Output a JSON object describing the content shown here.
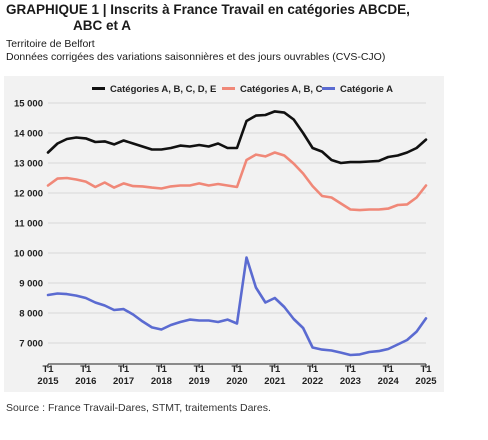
{
  "header": {
    "title_line1": "GRAPHIQUE 1 | Inscrits à France Travail en catégories ABCDE,",
    "title_line2": "ABC et A",
    "subtitle_line1": "Territoire de Belfort",
    "subtitle_line2": "Données corrigées des variations saisonnières et des jours ouvrables (CVS-CJO)"
  },
  "footer": {
    "source": "Source : France Travail-Dares, STMT, traitements Dares."
  },
  "chart_data": {
    "type": "line",
    "title": "",
    "xlabel": "",
    "ylabel": "",
    "ylim": [
      6500,
      15000
    ],
    "yticks": [
      7000,
      8000,
      9000,
      10000,
      11000,
      12000,
      13000,
      14000,
      15000
    ],
    "ytick_labels": [
      "7 000",
      "8 000",
      "9 000",
      "10 000",
      "11 000",
      "12 000",
      "13 000",
      "14 000",
      "15 000"
    ],
    "xlim": [
      2015.0,
      2025.0
    ],
    "xticks": [
      {
        "top": "T1",
        "bottom": "2015",
        "x": 2015
      },
      {
        "top": "T1",
        "bottom": "2016",
        "x": 2016
      },
      {
        "top": "T1",
        "bottom": "2017",
        "x": 2017
      },
      {
        "top": "T1",
        "bottom": "2018",
        "x": 2018
      },
      {
        "top": "T1",
        "bottom": "2019",
        "x": 2019
      },
      {
        "top": "T1",
        "bottom": "2020",
        "x": 2020
      },
      {
        "top": "T1",
        "bottom": "2021",
        "x": 2021
      },
      {
        "top": "T1",
        "bottom": "2022",
        "x": 2022
      },
      {
        "top": "T1",
        "bottom": "2023",
        "x": 2023
      },
      {
        "top": "T1",
        "bottom": "2024",
        "x": 2024
      },
      {
        "top": "T1",
        "bottom": "2025",
        "x": 2025
      }
    ],
    "grid": "horizontal",
    "legend_position": "top",
    "x": [
      2015.0,
      2015.25,
      2015.5,
      2015.75,
      2016.0,
      2016.25,
      2016.5,
      2016.75,
      2017.0,
      2017.25,
      2017.5,
      2017.75,
      2018.0,
      2018.25,
      2018.5,
      2018.75,
      2019.0,
      2019.25,
      2019.5,
      2019.75,
      2020.0,
      2020.25,
      2020.5,
      2020.75,
      2021.0,
      2021.25,
      2021.5,
      2021.75,
      2022.0,
      2022.25,
      2022.5,
      2022.75,
      2023.0,
      2023.25,
      2023.5,
      2023.75,
      2024.0,
      2024.25,
      2024.5,
      2024.75,
      2025.0
    ],
    "series": [
      {
        "name": "Catégories A, B, C, D, E",
        "color": "#111111",
        "values": [
          13350,
          13650,
          13800,
          13850,
          13820,
          13700,
          13720,
          13620,
          13750,
          13650,
          13550,
          13450,
          13450,
          13500,
          13580,
          13550,
          13600,
          13550,
          13650,
          13500,
          13500,
          14400,
          14580,
          14600,
          14720,
          14680,
          14450,
          14000,
          13500,
          13380,
          13100,
          13000,
          13030,
          13030,
          13050,
          13070,
          13200,
          13250,
          13350,
          13500,
          13780
        ]
      },
      {
        "name": "Catégories A, B, C",
        "color": "#f08878",
        "values": [
          12250,
          12480,
          12500,
          12450,
          12380,
          12200,
          12350,
          12180,
          12320,
          12230,
          12220,
          12180,
          12150,
          12220,
          12250,
          12250,
          12320,
          12250,
          12300,
          12250,
          12200,
          13100,
          13280,
          13220,
          13350,
          13250,
          12980,
          12650,
          12230,
          11900,
          11850,
          11650,
          11450,
          11430,
          11450,
          11450,
          11480,
          11600,
          11620,
          11850,
          12250
        ]
      },
      {
        "name": "Catégorie A",
        "color": "#5b6bd1",
        "values": [
          8600,
          8650,
          8630,
          8580,
          8500,
          8350,
          8250,
          8100,
          8130,
          7950,
          7720,
          7520,
          7450,
          7600,
          7700,
          7780,
          7750,
          7750,
          7700,
          7780,
          7650,
          9850,
          8850,
          8350,
          8500,
          8200,
          7800,
          7500,
          6850,
          6780,
          6750,
          6680,
          6600,
          6620,
          6700,
          6730,
          6800,
          6950,
          7100,
          7380,
          7820
        ]
      }
    ]
  }
}
